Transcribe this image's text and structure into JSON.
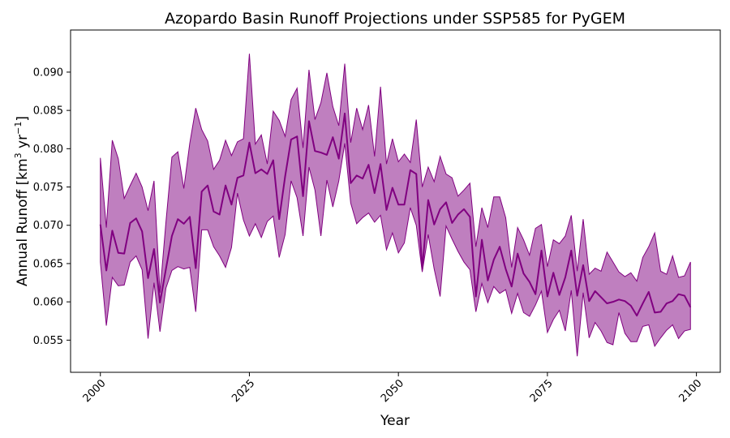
{
  "chart_data": {
    "type": "line",
    "title": "Azopardo Basin Runoff Projections under SSP585 for PyGEM",
    "xlabel": "Year",
    "ylabel": "Annual Runoff [km",
    "ylabel_sup1": "3",
    "ylabel_mid": " yr",
    "ylabel_sup2": "−1",
    "ylabel_end": "]",
    "xlim": [
      1995,
      2104
    ],
    "ylim": [
      0.0508,
      0.0955
    ],
    "xticks": [
      2000,
      2025,
      2050,
      2075,
      2100
    ],
    "xtick_labels": [
      "2000",
      "2025",
      "2050",
      "2075",
      "2100"
    ],
    "yticks": [
      0.055,
      0.06,
      0.065,
      0.07,
      0.075,
      0.08,
      0.085,
      0.09
    ],
    "ytick_labels": [
      "0.055",
      "0.060",
      "0.065",
      "0.070",
      "0.075",
      "0.080",
      "0.085",
      "0.090"
    ],
    "grid": false,
    "colors": {
      "line": "#800080",
      "band": "#800080"
    },
    "x": [
      2000,
      2001,
      2002,
      2003,
      2004,
      2005,
      2006,
      2007,
      2008,
      2009,
      2010,
      2011,
      2012,
      2013,
      2014,
      2015,
      2016,
      2017,
      2018,
      2019,
      2020,
      2021,
      2022,
      2023,
      2024,
      2025,
      2026,
      2027,
      2028,
      2029,
      2030,
      2031,
      2032,
      2033,
      2034,
      2035,
      2036,
      2037,
      2038,
      2039,
      2040,
      2041,
      2042,
      2043,
      2044,
      2045,
      2046,
      2047,
      2048,
      2049,
      2050,
      2051,
      2052,
      2053,
      2054,
      2055,
      2056,
      2057,
      2058,
      2059,
      2060,
      2061,
      2062,
      2063,
      2064,
      2065,
      2066,
      2067,
      2068,
      2069,
      2070,
      2071,
      2072,
      2073,
      2074,
      2075,
      2076,
      2077,
      2078,
      2079,
      2080,
      2081,
      2082,
      2083,
      2084,
      2085,
      2086,
      2087,
      2088,
      2089,
      2090,
      2091,
      2092,
      2093,
      2094,
      2095,
      2096,
      2097,
      2098,
      2099
    ],
    "series": [
      {
        "values": [
          0.0701,
          0.0641,
          0.0693,
          0.0664,
          0.0663,
          0.0703,
          0.0709,
          0.0692,
          0.0631,
          0.0669,
          0.0599,
          0.0643,
          0.0686,
          0.0708,
          0.0702,
          0.0711,
          0.0644,
          0.0744,
          0.0752,
          0.0718,
          0.0714,
          0.0752,
          0.0727,
          0.0762,
          0.0765,
          0.0808,
          0.0768,
          0.0773,
          0.0767,
          0.0785,
          0.0708,
          0.0764,
          0.0812,
          0.0816,
          0.0738,
          0.0836,
          0.0797,
          0.0795,
          0.0792,
          0.0815,
          0.0787,
          0.0846,
          0.0755,
          0.0765,
          0.0761,
          0.0779,
          0.0742,
          0.078,
          0.072,
          0.0749,
          0.0727,
          0.0727,
          0.0772,
          0.0767,
          0.0643,
          0.0733,
          0.0701,
          0.0721,
          0.073,
          0.0703,
          0.0714,
          0.0721,
          0.0711,
          0.0607,
          0.0681,
          0.0628,
          0.0655,
          0.0672,
          0.0643,
          0.062,
          0.0663,
          0.0637,
          0.0626,
          0.061,
          0.0667,
          0.0607,
          0.0638,
          0.0609,
          0.0632,
          0.0667,
          0.0608,
          0.0648,
          0.0601,
          0.0614,
          0.0606,
          0.0598,
          0.06,
          0.0603,
          0.0601,
          0.0595,
          0.0582,
          0.0598,
          0.0613,
          0.0586,
          0.0587,
          0.0598,
          0.0601,
          0.061,
          0.0608,
          0.0593
        ]
      }
    ],
    "band_lower": [
      0.0652,
      0.0569,
      0.0632,
      0.0621,
      0.0622,
      0.0652,
      0.066,
      0.0642,
      0.0552,
      0.0625,
      0.0561,
      0.0618,
      0.0641,
      0.0646,
      0.0643,
      0.0645,
      0.0587,
      0.0694,
      0.0694,
      0.0672,
      0.066,
      0.0645,
      0.0671,
      0.0742,
      0.0707,
      0.0686,
      0.0702,
      0.0684,
      0.0705,
      0.0712,
      0.0658,
      0.0688,
      0.0758,
      0.0736,
      0.0686,
      0.0776,
      0.0746,
      0.0686,
      0.0759,
      0.0724,
      0.0758,
      0.0807,
      0.0729,
      0.0702,
      0.071,
      0.0716,
      0.0704,
      0.0713,
      0.0668,
      0.069,
      0.0664,
      0.0677,
      0.0723,
      0.07,
      0.0639,
      0.0688,
      0.0643,
      0.0607,
      0.0699,
      0.0682,
      0.0666,
      0.0652,
      0.0642,
      0.0587,
      0.0624,
      0.0599,
      0.062,
      0.0611,
      0.0616,
      0.0585,
      0.0611,
      0.0586,
      0.0581,
      0.0596,
      0.0614,
      0.056,
      0.0577,
      0.0589,
      0.0562,
      0.0615,
      0.0529,
      0.0612,
      0.0553,
      0.0573,
      0.0562,
      0.0547,
      0.0544,
      0.0586,
      0.0559,
      0.0548,
      0.0548,
      0.0568,
      0.057,
      0.0542,
      0.0553,
      0.0563,
      0.057,
      0.0552,
      0.0562,
      0.0564
    ],
    "band_upper": [
      0.0788,
      0.0697,
      0.0811,
      0.0787,
      0.0735,
      0.0752,
      0.0768,
      0.075,
      0.0719,
      0.0758,
      0.0612,
      0.0704,
      0.0789,
      0.0796,
      0.0748,
      0.0807,
      0.0853,
      0.0825,
      0.081,
      0.0773,
      0.0785,
      0.0811,
      0.0791,
      0.0809,
      0.0813,
      0.0924,
      0.0806,
      0.0818,
      0.078,
      0.0849,
      0.0837,
      0.0816,
      0.0864,
      0.0879,
      0.0801,
      0.0903,
      0.0838,
      0.086,
      0.0899,
      0.0855,
      0.083,
      0.0911,
      0.0808,
      0.0853,
      0.0825,
      0.0857,
      0.079,
      0.0881,
      0.078,
      0.0813,
      0.0783,
      0.0793,
      0.0782,
      0.0838,
      0.075,
      0.0776,
      0.0757,
      0.079,
      0.0767,
      0.0762,
      0.0738,
      0.0746,
      0.0755,
      0.0672,
      0.0723,
      0.0697,
      0.0737,
      0.0737,
      0.071,
      0.0645,
      0.0697,
      0.0681,
      0.0661,
      0.0696,
      0.0701,
      0.0646,
      0.0681,
      0.0676,
      0.0686,
      0.0713,
      0.064,
      0.0708,
      0.0636,
      0.0644,
      0.064,
      0.0665,
      0.0652,
      0.0639,
      0.0633,
      0.0638,
      0.0627,
      0.0658,
      0.0672,
      0.069,
      0.064,
      0.0636,
      0.066,
      0.0632,
      0.0634,
      0.0652
    ]
  }
}
